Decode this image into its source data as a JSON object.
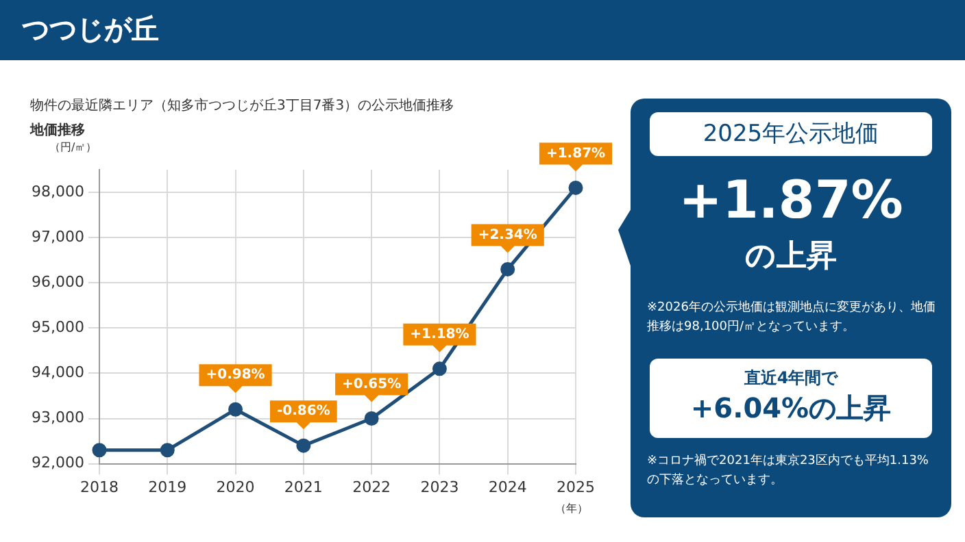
{
  "chart_data": {
    "type": "line",
    "title": "つつじが丘",
    "subtitle": "物件の最近隣エリア（知多市つつじが丘3丁目7番3）の公示地価推移",
    "ylabel": "地価推移",
    "xlabel": "（年）",
    "categories": [
      "2018",
      "2019",
      "2020",
      "2021",
      "2022",
      "2023",
      "2024",
      "2025"
    ],
    "series": [
      {
        "color": "#1f4e79",
        "values": [
          92300,
          92300,
          93200,
          92400,
          93000,
          94100,
          96300,
          98100
        ]
      }
    ],
    "ylim": [
      92000,
      98500
    ],
    "yticks": [
      {
        "value": 92000,
        "label": "92,000"
      },
      {
        "value": 93000,
        "label": "93,000"
      },
      {
        "value": 94000,
        "label": "94,000"
      },
      {
        "value": 95000,
        "label": "95,000"
      },
      {
        "value": 96000,
        "label": "96,000"
      },
      {
        "value": 97000,
        "label": "97,000"
      },
      {
        "value": 98000,
        "label": "98,000"
      }
    ],
    "grid": true,
    "marker": "circle",
    "line_style": "solid",
    "annotations": [
      "（円/㎡）",
      "2025年公示地価",
      "+1.87%",
      "の上昇",
      "※2026年の公示地価は観測地点に変更があり、地価推移は98,100円/㎡となっています。",
      "直近4年間で",
      "+6.04%の上昇",
      "※コロナ禍で2021年は東京23区内でも平均1.13%の下落となっています。",
      {
        "text": "+0.98%",
        "x": "2020",
        "y": 93200
      },
      {
        "text": "-0.86%",
        "x": "2021",
        "y": 92400
      },
      {
        "text": "+0.65%",
        "x": "2022",
        "y": 93000
      },
      {
        "text": "+1.18%",
        "x": "2023",
        "y": 94100
      },
      {
        "text": "+2.34%",
        "x": "2024",
        "y": 96300
      },
      {
        "text": "+1.87%",
        "x": "2025",
        "y": 98100
      }
    ]
  }
}
